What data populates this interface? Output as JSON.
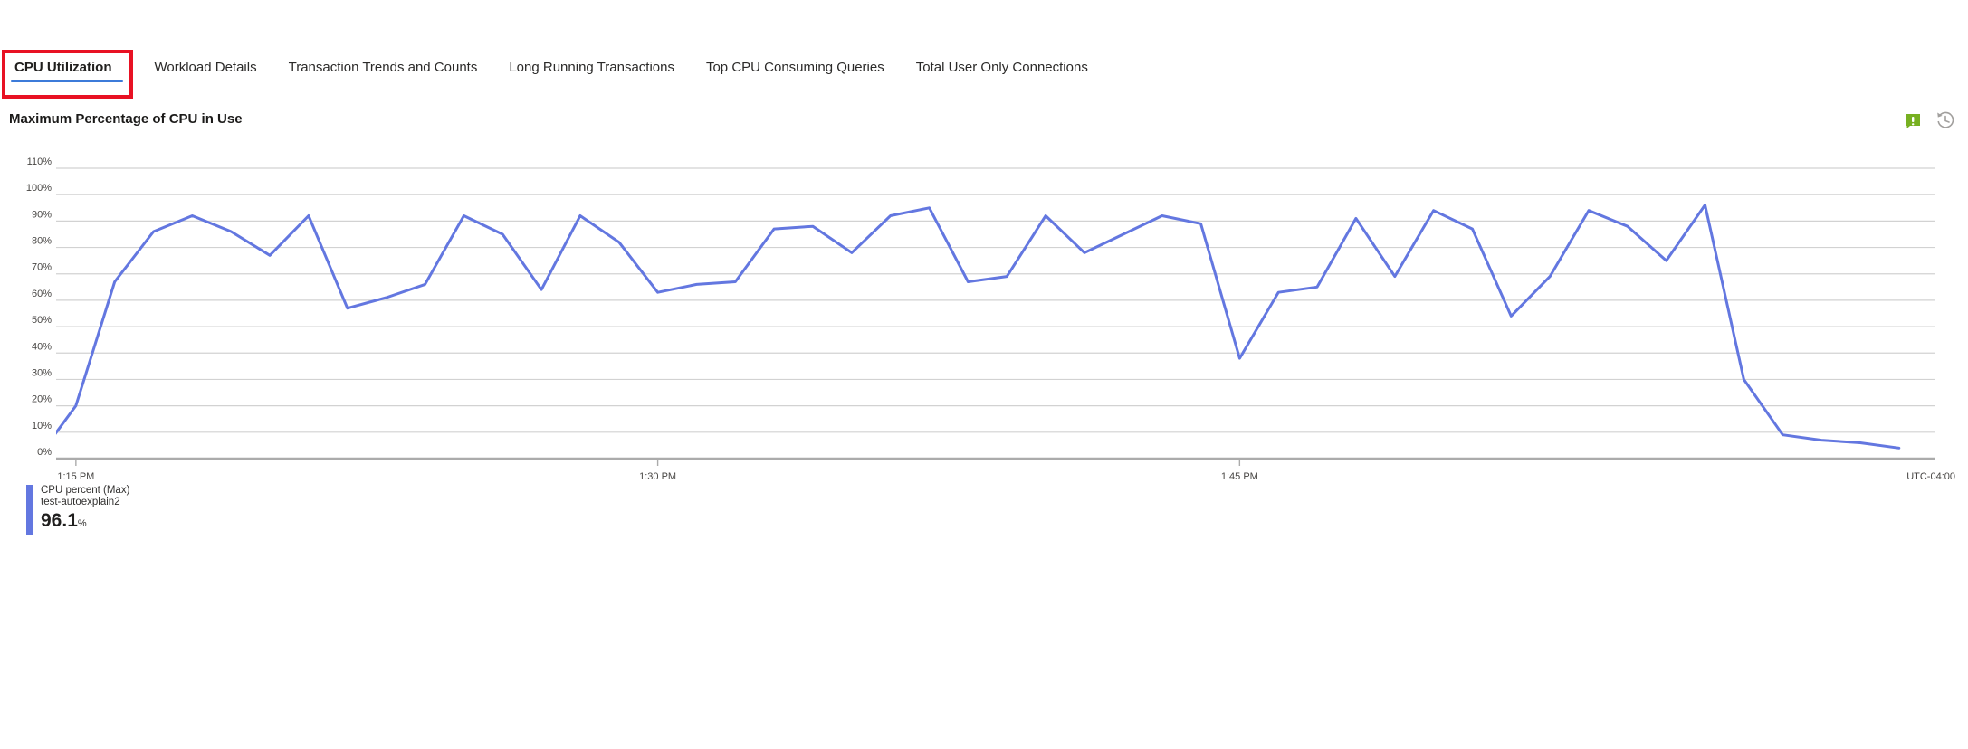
{
  "tabs": [
    {
      "label": "CPU Utilization",
      "active": true
    },
    {
      "label": "Workload Details",
      "active": false
    },
    {
      "label": "Transaction Trends and Counts",
      "active": false
    },
    {
      "label": "Long Running Transactions",
      "active": false
    },
    {
      "label": "Top CPU Consuming Queries",
      "active": false
    },
    {
      "label": "Total User Only Connections",
      "active": false
    }
  ],
  "chart_header": {
    "title": "Maximum Percentage of CPU in Use",
    "icons": [
      "feedback-icon",
      "history-icon"
    ]
  },
  "legend": {
    "series_label": "CPU percent (Max)",
    "resource": "test-autoexplain2",
    "value": "96.1",
    "unit": "%"
  },
  "colors": {
    "line": "#6377e0",
    "legend_bar": "#6377e0",
    "tab_underline": "#3c7bd9",
    "annotation_red": "#e81123",
    "gridline": "#d2d2d2",
    "axis_line": "#ababab",
    "tick_text": "#484644",
    "feedback_green": "#77b021"
  },
  "chart_data": {
    "type": "line",
    "title": "Maximum Percentage of CPU in Use",
    "ylabel": "CPU percent",
    "unit": "%",
    "ylim": [
      0,
      110
    ],
    "ytick_step": 10,
    "ytick_labels": [
      "0%",
      "10%",
      "20%",
      "30%",
      "40%",
      "50%",
      "60%",
      "70%",
      "80%",
      "90%",
      "100%",
      "110%"
    ],
    "xticks": [
      {
        "label": "1:15 PM",
        "minute": 1
      },
      {
        "label": "1:30 PM",
        "minute": 16
      },
      {
        "label": "1:45 PM",
        "minute": 31
      }
    ],
    "timezone_label": "UTC-04:00",
    "grid": true,
    "legend_position": "bottom-left",
    "start_time": "1:14 PM",
    "end_time": "2:02 PM",
    "interval_minutes": 1,
    "series": [
      {
        "name": "CPU percent (Max)",
        "resource": "test-autoexplain2",
        "displayed_max": 96.1,
        "values": [
          0,
          20,
          67,
          86,
          92,
          86,
          77,
          92,
          57,
          61,
          66,
          92,
          85,
          64,
          92,
          82,
          63,
          66,
          67,
          87,
          88,
          78,
          92,
          95,
          67,
          69,
          92,
          78,
          85,
          92,
          89,
          38,
          63,
          65,
          91,
          69,
          94,
          87,
          54,
          69,
          94,
          88,
          75,
          96.1,
          30,
          9,
          7,
          6,
          4
        ]
      }
    ]
  }
}
